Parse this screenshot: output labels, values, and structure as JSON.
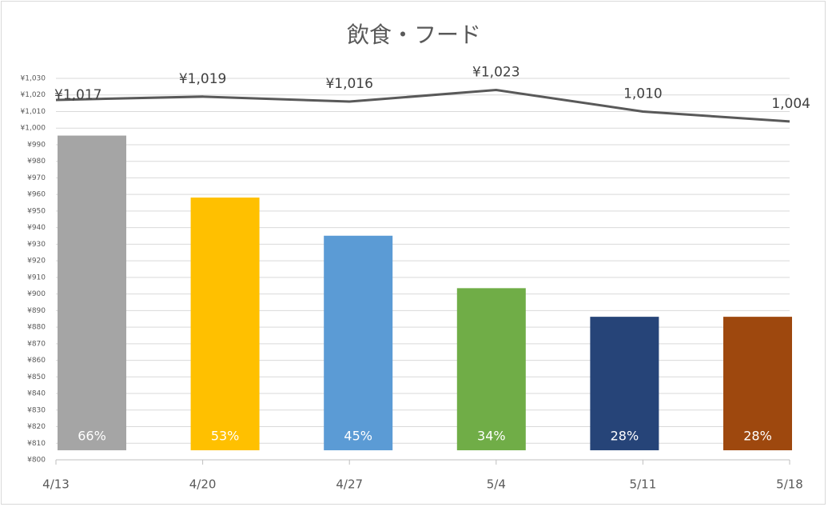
{
  "chart_data": {
    "type": "combo",
    "title": "飲食・フード",
    "categories": [
      "4/13",
      "4/20",
      "4/27",
      "5/4",
      "5/11",
      "5/18"
    ],
    "ylim": [
      800,
      1030
    ],
    "yticks": [
      {
        "value": 800,
        "label": "¥800"
      },
      {
        "value": 810,
        "label": "¥810"
      },
      {
        "value": 820,
        "label": "¥820"
      },
      {
        "value": 830,
        "label": "¥830"
      },
      {
        "value": 840,
        "label": "¥840"
      },
      {
        "value": 850,
        "label": "¥850"
      },
      {
        "value": 860,
        "label": "¥860"
      },
      {
        "value": 870,
        "label": "¥870"
      },
      {
        "value": 880,
        "label": "¥880"
      },
      {
        "value": 890,
        "label": "¥890"
      },
      {
        "value": 900,
        "label": "¥900"
      },
      {
        "value": 910,
        "label": "¥910"
      },
      {
        "value": 920,
        "label": "¥920"
      },
      {
        "value": 930,
        "label": "¥930"
      },
      {
        "value": 940,
        "label": "¥940"
      },
      {
        "value": 950,
        "label": "¥950"
      },
      {
        "value": 960,
        "label": "¥960"
      },
      {
        "value": 970,
        "label": "¥970"
      },
      {
        "value": 980,
        "label": "¥980"
      },
      {
        "value": 990,
        "label": "¥990"
      },
      {
        "value": 1000,
        "label": "¥1,000"
      },
      {
        "value": 1010,
        "label": "¥1,010"
      },
      {
        "value": 1020,
        "label": "¥1,020"
      },
      {
        "value": 1030,
        "label": "¥1,030"
      }
    ],
    "y2lim": [
      -2,
      78
    ],
    "grid": true,
    "series": [
      {
        "type": "bar",
        "axis": "y2",
        "colors": [
          "#a5a5a5",
          "#ffc000",
          "#5b9bd5",
          "#70ad47",
          "#264478",
          "#9e480e"
        ],
        "values": [
          66,
          53,
          45,
          34,
          28,
          28
        ],
        "value_labels": [
          "66%",
          "53%",
          "45%",
          "34%",
          "28%",
          "28%"
        ]
      },
      {
        "type": "line",
        "color": "#595959",
        "values": [
          1017,
          1019,
          1016,
          1023,
          1010,
          1004
        ],
        "value_labels": [
          "¥1,017",
          "¥1,019",
          "¥1,016",
          "¥1,023",
          "1,010",
          "1,004"
        ]
      }
    ]
  }
}
